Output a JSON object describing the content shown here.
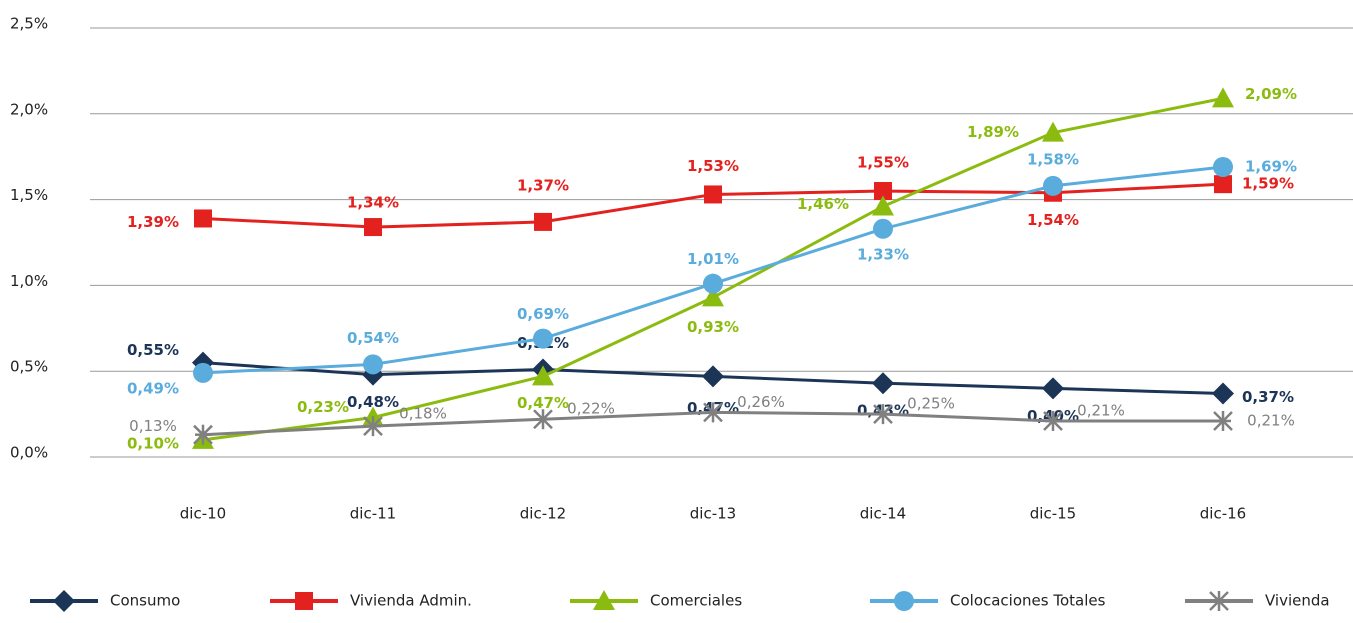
{
  "chart_data": {
    "type": "line",
    "categories": [
      "dic-10",
      "dic-11",
      "dic-12",
      "dic-13",
      "dic-14",
      "dic-15",
      "dic-16"
    ],
    "ylim": [
      0,
      2.5
    ],
    "yticks": [
      {
        "value": 0,
        "label": "0,0%"
      },
      {
        "value": 0.5,
        "label": "0,5%"
      },
      {
        "value": 1.0,
        "label": "1,0%"
      },
      {
        "value": 1.5,
        "label": "1,5%"
      },
      {
        "value": 2.0,
        "label": "2,0%"
      },
      {
        "value": 2.5,
        "label": "2,5%"
      }
    ],
    "grid": true,
    "legend": "bottom",
    "series": [
      {
        "name": "Consumo",
        "color": "#1c3557",
        "marker": "diamond",
        "values": [
          0.55,
          0.48,
          0.51,
          0.47,
          0.43,
          0.4,
          0.37
        ],
        "value_labels": [
          "0,55%",
          "0,48%",
          "0,51%",
          "0,47%",
          "0,43%",
          "0,40%",
          "0,37%"
        ]
      },
      {
        "name": "Vivienda Admin.",
        "color": "#e3211f",
        "marker": "square",
        "values": [
          1.39,
          1.34,
          1.37,
          1.53,
          1.55,
          1.54,
          1.59
        ],
        "value_labels": [
          "1,39%",
          "1,34%",
          "1,37%",
          "1,53%",
          "1,55%",
          "1,54%",
          "1,59%"
        ]
      },
      {
        "name": "Comerciales",
        "color": "#8cbb10",
        "marker": "triangle",
        "values": [
          0.1,
          0.23,
          0.47,
          0.93,
          1.46,
          1.89,
          2.09
        ],
        "value_labels": [
          "0,10%",
          "0,23%",
          "0,47%",
          "0,93%",
          "1,46%",
          "1,89%",
          "2,09%"
        ]
      },
      {
        "name": "Colocaciones Totales",
        "color": "#5aacdc",
        "marker": "circle",
        "values": [
          0.49,
          0.54,
          0.69,
          1.01,
          1.33,
          1.58,
          1.69
        ],
        "value_labels": [
          "0,49%",
          "0,54%",
          "0,69%",
          "1,01%",
          "1,33%",
          "1,58%",
          "1,69%"
        ]
      },
      {
        "name": "Vivienda",
        "color": "#808080",
        "marker": "star",
        "values": [
          0.13,
          0.18,
          0.22,
          0.26,
          0.25,
          0.21,
          0.21
        ],
        "value_labels": [
          "0,13%",
          "0,18%",
          "0,22%",
          "0,26%",
          "0,25%",
          "0,21%",
          "0,21%"
        ]
      }
    ]
  }
}
